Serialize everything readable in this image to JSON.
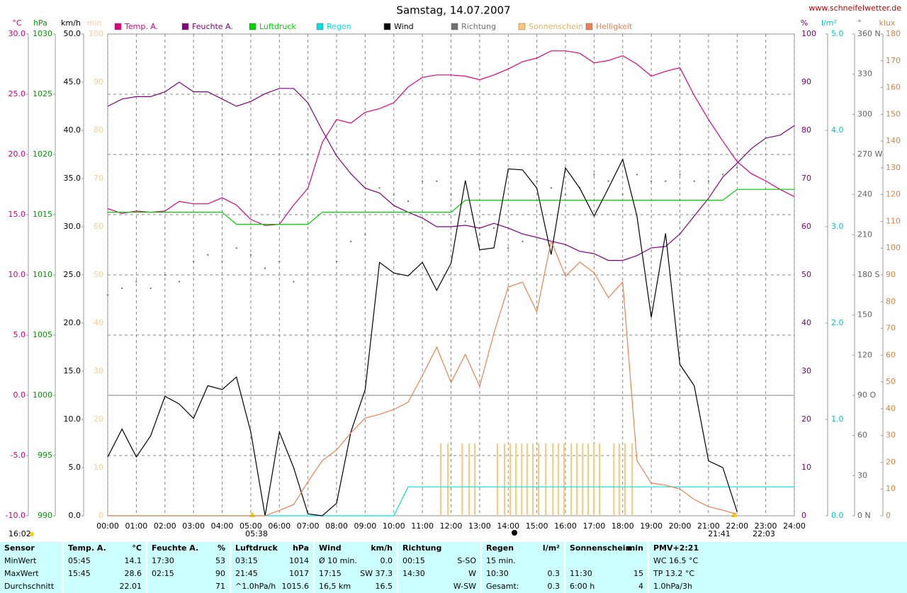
{
  "chart_data": {
    "type": "line",
    "title": "Samstag, 14.07.2007",
    "source": "www.schneifelwetter.de",
    "grid": true,
    "xlim": [
      0,
      24
    ],
    "xticks": [
      {
        "value": 0,
        "label": "00:00"
      },
      {
        "value": 1,
        "label": "01:00"
      },
      {
        "value": 2,
        "label": "02:00"
      },
      {
        "value": 3,
        "label": "03:00"
      },
      {
        "value": 4,
        "label": "04:00"
      },
      {
        "value": 5,
        "label": "05:00"
      },
      {
        "value": 6,
        "label": "06:00"
      },
      {
        "value": 7,
        "label": "07:00"
      },
      {
        "value": 8,
        "label": "08:00"
      },
      {
        "value": 9,
        "label": "09:00"
      },
      {
        "value": 10,
        "label": "10:00"
      },
      {
        "value": 11,
        "label": "11:00"
      },
      {
        "value": 12,
        "label": "12:00"
      },
      {
        "value": 13,
        "label": "13:00"
      },
      {
        "value": 14,
        "label": "14:00"
      },
      {
        "value": 15,
        "label": "15:00"
      },
      {
        "value": 16,
        "label": "16:00"
      },
      {
        "value": 17,
        "label": "17:00"
      },
      {
        "value": 18,
        "label": "18:00"
      },
      {
        "value": 19,
        "label": "19:00"
      },
      {
        "value": 20,
        "label": "20:00"
      },
      {
        "value": 21,
        "label": "21:00"
      },
      {
        "value": 22,
        "label": "22:00"
      },
      {
        "value": 23,
        "label": "23:00"
      },
      {
        "value": 24,
        "label": "24:00"
      }
    ],
    "axes": [
      {
        "label": "°C",
        "color": "#cc0080",
        "lim": [
          -10,
          30
        ],
        "ticks": [
          {
            "value": 30,
            "label": "30.0"
          },
          {
            "value": 25,
            "label": "25.0"
          },
          {
            "value": 20,
            "label": "20.0"
          },
          {
            "value": 15,
            "label": "15.0"
          },
          {
            "value": 10,
            "label": "10.0"
          },
          {
            "value": 5,
            "label": "5.0"
          },
          {
            "value": 0,
            "label": "0.0"
          },
          {
            "value": -5,
            "label": "-5.0"
          },
          {
            "value": -10,
            "label": "-10.0"
          }
        ]
      },
      {
        "label": "hPa",
        "color": "#009900",
        "lim": [
          990,
          1030
        ],
        "ticks": [
          1030,
          1025,
          1020,
          1015,
          1010,
          1005,
          1000,
          995,
          990
        ]
      },
      {
        "label": "km/h",
        "color": "#000000",
        "lim": [
          0,
          50
        ],
        "ticks": [
          {
            "value": 50,
            "label": "50.0"
          },
          {
            "value": 45,
            "label": "45.0"
          },
          {
            "value": 40,
            "label": "40.0"
          },
          {
            "value": 35,
            "label": "35.0"
          },
          {
            "value": 30,
            "label": "30.0"
          },
          {
            "value": 25,
            "label": "25.0"
          },
          {
            "value": 20,
            "label": "20.0"
          },
          {
            "value": 15,
            "label": "15.0"
          },
          {
            "value": 10,
            "label": "10.0"
          },
          {
            "value": 5,
            "label": "5.0"
          },
          {
            "value": 0,
            "label": "0.0"
          }
        ]
      },
      {
        "label": "min",
        "color": "#ffcc99",
        "lim": [
          0,
          100
        ],
        "ticks": [
          100,
          90,
          80,
          70,
          60,
          50,
          40,
          30,
          20,
          10,
          0
        ]
      },
      {
        "label": "%",
        "color": "#800080",
        "lim": [
          0,
          100
        ],
        "ticks": [
          100,
          90,
          80,
          70,
          60,
          50,
          40,
          30,
          20,
          10,
          0
        ]
      },
      {
        "label": "l/m²",
        "color": "#00c8c8",
        "lim": [
          0,
          5
        ],
        "ticks": [
          {
            "value": 5,
            "label": "5.0"
          },
          {
            "value": 4,
            "label": "4.0"
          },
          {
            "value": 3,
            "label": "3.0"
          },
          {
            "value": 2,
            "label": "2.0"
          },
          {
            "value": 1,
            "label": "1.0"
          },
          {
            "value": 0,
            "label": "0.0"
          }
        ]
      },
      {
        "label": "°",
        "color": "#606060",
        "lim": [
          0,
          360
        ],
        "ticks": [
          {
            "value": 360,
            "label": "360 N"
          },
          330,
          300,
          {
            "value": 270,
            "label": "270 W"
          },
          240,
          210,
          {
            "value": 180,
            "label": "180 S"
          },
          150,
          120,
          {
            "value": 90,
            "label": "90 O"
          },
          60,
          30,
          {
            "value": 0,
            "label": "0 N"
          }
        ]
      },
      {
        "label": "klux",
        "color": "#e08040",
        "lim": [
          0,
          180
        ],
        "ticks": [
          180,
          170,
          160,
          150,
          140,
          130,
          120,
          110,
          100,
          90,
          80,
          70,
          60,
          50,
          40,
          30,
          20,
          10,
          0
        ]
      }
    ],
    "x": [
      0,
      0.5,
      1,
      1.5,
      2,
      2.5,
      3,
      3.5,
      4,
      4.5,
      5,
      5.5,
      6,
      6.5,
      7,
      7.5,
      8,
      8.5,
      9,
      9.5,
      10,
      10.5,
      11,
      11.5,
      12,
      12.5,
      13,
      13.5,
      14,
      14.5,
      15,
      15.5,
      16,
      16.5,
      17,
      17.5,
      18,
      18.5,
      19,
      19.5,
      20,
      20.5,
      21,
      21.5,
      22,
      22.5,
      23,
      23.5,
      24
    ],
    "series": [
      {
        "name": "Temp. A.",
        "color": "#e0007f",
        "axis": 0,
        "type": "line",
        "values": [
          15.5,
          15.1,
          15.3,
          15.2,
          15.3,
          16.1,
          15.9,
          15.9,
          16.4,
          15.8,
          14.6,
          14.1,
          14.2,
          15.8,
          17.2,
          21.0,
          22.9,
          22.6,
          23.5,
          23.8,
          24.3,
          25.6,
          26.4,
          26.6,
          26.6,
          26.5,
          26.2,
          26.6,
          27.1,
          27.7,
          28.0,
          28.6,
          28.6,
          28.4,
          27.6,
          27.8,
          28.2,
          27.5,
          26.5,
          26.9,
          27.2,
          24.9,
          22.9,
          21.1,
          19.4,
          18.4,
          17.8,
          17.1,
          16.5
        ]
      },
      {
        "name": "Feuchte A.",
        "color": "#800080",
        "axis": 4,
        "type": "line",
        "values": [
          85,
          86.5,
          87,
          87,
          88,
          90,
          88,
          88,
          86.5,
          85,
          86,
          87.6,
          88.7,
          88.7,
          85.7,
          80,
          74.7,
          71,
          68,
          67,
          64.4,
          63,
          61.8,
          60,
          60,
          60.3,
          59.7,
          60.7,
          59.7,
          58.5,
          57.8,
          57,
          56.3,
          54.9,
          54.4,
          53,
          53,
          54,
          55.6,
          55.9,
          58.5,
          62.2,
          65.9,
          70.3,
          73.2,
          76.2,
          78.4,
          79,
          81
        ]
      },
      {
        "name": "Luftdruck",
        "color": "#00d000",
        "axis": 1,
        "type": "line",
        "values": [
          1015.2,
          1015.2,
          1015.2,
          1015.2,
          1015.2,
          1015.2,
          1015.2,
          1015.2,
          1015.2,
          1014.2,
          1014.2,
          1014.2,
          1014.2,
          1014.2,
          1014.2,
          1015.2,
          1015.2,
          1015.2,
          1015.2,
          1015.2,
          1015.2,
          1015.2,
          1015.2,
          1015.2,
          1015.2,
          1016.2,
          1016.2,
          1016.2,
          1016.2,
          1016.2,
          1016.2,
          1016.2,
          1016.2,
          1016.2,
          1016.2,
          1016.2,
          1016.2,
          1016.2,
          1016.2,
          1016.2,
          1016.2,
          1016.2,
          1016.2,
          1016.2,
          1017.1,
          1017.1,
          1017.1,
          1017.1,
          1017.1
        ]
      },
      {
        "name": "Regen",
        "color": "#00e0e0",
        "axis": 5,
        "type": "line",
        "values": [
          0,
          0,
          0,
          0,
          0,
          0,
          0,
          0,
          0,
          0,
          0,
          0,
          0,
          0,
          0,
          0,
          0,
          0,
          0,
          0,
          0,
          0.3,
          0.3,
          0.3,
          0.3,
          0.3,
          0.3,
          0.3,
          0.3,
          0.3,
          0.3,
          0.3,
          0.3,
          0.3,
          0.3,
          0.3,
          0.3,
          0.3,
          0.3,
          0.3,
          0.3,
          0.3,
          0.3,
          0.3,
          0.3,
          0.3,
          0.3,
          0.3,
          0.3
        ]
      },
      {
        "name": "Wind",
        "color": "#000000",
        "axis": 2,
        "type": "line",
        "values": [
          6.1,
          9,
          6.1,
          8.3,
          12.4,
          11.6,
          10.1,
          13.5,
          13.1,
          14.4,
          8.7,
          0,
          8.7,
          5.0,
          0.2,
          0,
          1.3,
          8.7,
          13.1,
          26.3,
          25.2,
          24.9,
          26.3,
          23.4,
          26.2,
          34.8,
          27.6,
          27.8,
          36,
          35.9,
          34,
          27.1,
          36.1,
          34,
          31.1,
          34,
          37,
          31.1,
          20.6,
          29.3,
          15.7,
          13.5,
          5.7,
          5,
          0.4,
          null,
          null,
          null,
          null
        ]
      },
      {
        "name": "Richtung",
        "color": "#707070",
        "axis": 6,
        "type": "scatter",
        "values": [
          165,
          170,
          175,
          170,
          180,
          175,
          190,
          195,
          190,
          200,
          195,
          185,
          190,
          175,
          null,
          null,
          190,
          205,
          210,
          245,
          240,
          235,
          250,
          250,
          240,
          220,
          210,
          215,
          200,
          205,
          250,
          245,
          240,
          245,
          255,
          250,
          240,
          255,
          250,
          250,
          255,
          250,
          250,
          255,
          260,
          null,
          null,
          null,
          null
        ]
      },
      {
        "name": "Sonnenschein",
        "color": "#ffc878",
        "axis": 3,
        "type": "bar",
        "x": [
          11.64,
          11.89,
          12.39,
          12.63,
          12.83,
          13.62,
          13.87,
          14.07,
          14.27,
          14.47,
          14.66,
          14.86,
          15.06,
          15.31,
          15.56,
          15.75,
          15.95,
          16.2,
          16.4,
          16.6,
          16.79,
          16.99,
          17.19,
          17.69,
          17.88,
          18.08,
          18.33
        ],
        "values": [
          15,
          15,
          15,
          15,
          15,
          15,
          15,
          15,
          15,
          15,
          15,
          15,
          15,
          15,
          15,
          15,
          15,
          15,
          15,
          15,
          15,
          15,
          15,
          15,
          15,
          15,
          15
        ]
      },
      {
        "name": "Helligkeit",
        "color": "#f08050",
        "axis": 7,
        "type": "line",
        "values": [
          0,
          0,
          0,
          0,
          0,
          0,
          0,
          0,
          0,
          0,
          0,
          0,
          2,
          4.2,
          12.7,
          20.6,
          24.6,
          31,
          36.5,
          37.9,
          39.7,
          42.4,
          52.4,
          63,
          49.8,
          60.3,
          48.4,
          68.3,
          85.5,
          87.3,
          76.2,
          102.7,
          89.5,
          94.8,
          90.8,
          81.5,
          87.3,
          20.6,
          12.2,
          11.4,
          10,
          6.1,
          3.4,
          2.1,
          0.5,
          null,
          null,
          null,
          null
        ]
      }
    ],
    "annotations": [
      "16:02",
      "05:38",
      "21:41",
      "22:03"
    ]
  },
  "table": {
    "rows": [
      [
        [
          "Sensor",
          null
        ],
        [
          "Temp. A.",
          "°C"
        ],
        [
          "Feuchte A.",
          "%"
        ],
        [
          "Luftdruck",
          "hPa"
        ],
        [
          "Wind",
          "km/h"
        ],
        [
          "Richtung",
          null
        ],
        [
          "Regen",
          "l/m²"
        ],
        [
          "Sonnenschein",
          "min"
        ],
        [
          "PMV+2:21",
          null
        ]
      ],
      [
        [
          "MinWert",
          null
        ],
        [
          "05:45",
          "14.1"
        ],
        [
          "17:30",
          "53"
        ],
        [
          "03:15",
          "1014"
        ],
        [
          "Ø 10 min.",
          "0.0"
        ],
        [
          "00:15",
          "S-SO"
        ],
        [
          "15 min.",
          null
        ],
        [],
        [
          "WC 16.5 °C",
          null
        ]
      ],
      [
        [
          "MaxWert",
          null
        ],
        [
          "15:45",
          "28.6"
        ],
        [
          "02:15",
          "90"
        ],
        [
          "21:45",
          "1017"
        ],
        [
          "17:15",
          "SW 37.3"
        ],
        [
          "14:30",
          "W"
        ],
        [
          "10:30",
          "0.3"
        ],
        [
          "11:30",
          "15"
        ],
        [
          "TP 13.2 °C",
          null
        ]
      ],
      [
        [
          "Durchschnitt",
          null
        ],
        [
          null,
          "22.01"
        ],
        [
          null,
          "71"
        ],
        [
          "^1.0hPa/h",
          "1015.6"
        ],
        [
          "16,5 km",
          "16.5"
        ],
        [
          null,
          "W-SW"
        ],
        [
          "Gesamt:",
          "0.3"
        ],
        [
          "6:00 h",
          "4"
        ],
        [
          "1.0hPa/3h",
          null
        ]
      ]
    ]
  }
}
